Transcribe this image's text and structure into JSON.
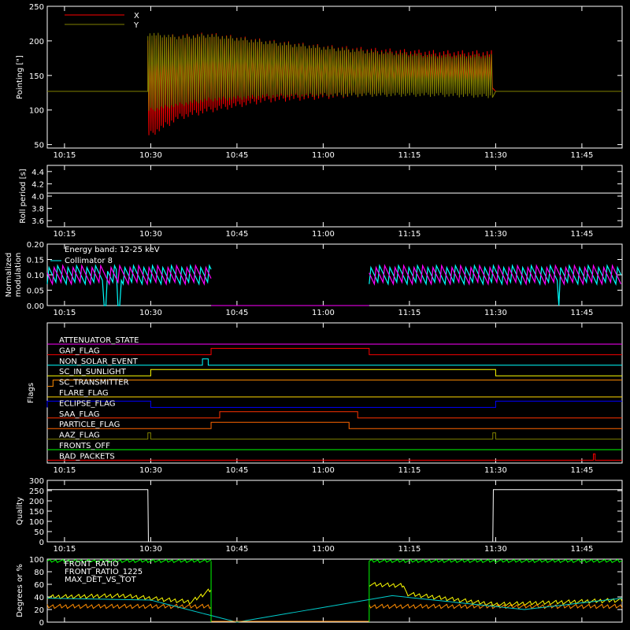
{
  "chart_data": [
    {
      "type": "line",
      "ylabel": "Pointing [\"]",
      "ylim": [
        45,
        250
      ],
      "yticks": [
        50,
        100,
        150,
        200,
        250
      ],
      "xlim": [
        "10:12",
        "11:52"
      ],
      "series": [
        {
          "name": "X",
          "color": "#ff0000",
          "note_units": "arcsec",
          "x": [
            "10:12",
            "10:29",
            "10:30",
            "10:35",
            "10:40",
            "10:50",
            "11:00",
            "11:10",
            "11:20",
            "11:29.5",
            "11:30",
            "11:52"
          ],
          "max": [
            127,
            127,
            205,
            205,
            208,
            198,
            190,
            185,
            182,
            182,
            127,
            127
          ],
          "min": [
            127,
            127,
            65,
            90,
            100,
            115,
            120,
            125,
            135,
            135,
            127,
            127
          ]
        },
        {
          "name": "Y",
          "color": "#808000",
          "x": [
            "10:12",
            "10:29",
            "10:30",
            "10:35",
            "10:40",
            "10:50",
            "11:00",
            "11:10",
            "11:20",
            "11:29.5",
            "11:30",
            "11:52"
          ],
          "max": [
            127,
            127,
            210,
            205,
            208,
            198,
            190,
            183,
            178,
            178,
            127,
            127
          ],
          "min": [
            127,
            127,
            100,
            108,
            115,
            120,
            122,
            122,
            122,
            120,
            127,
            127
          ]
        }
      ]
    },
    {
      "type": "line",
      "ylabel": "Roll period [s]",
      "ylim": [
        3.5,
        4.5
      ],
      "yticks": [
        "3.6",
        "3.8",
        "4.0",
        "4.2",
        "4.4"
      ],
      "series": [
        {
          "color": "#ffffff",
          "x": [
            "10:12",
            "11:52"
          ],
          "y": [
            4.05,
            4.05
          ]
        }
      ]
    },
    {
      "type": "line",
      "ylabel": "Normalized modulation",
      "ylim": [
        0,
        0.2
      ],
      "yticks": [
        "0.00",
        "0.05",
        "0.10",
        "0.15",
        "0.20"
      ],
      "annotation": "Energy band: 12-25 keV",
      "series": [
        {
          "name": "Collimator 8",
          "color": "#00ffff",
          "segments": [
            [
              "10:12",
              "10:40.5"
            ],
            [
              "11:08",
              "11:52"
            ]
          ],
          "level": 0.1,
          "dips": [
            "10:22",
            "10:24.5",
            "11:41"
          ]
        },
        {
          "name": "",
          "color": "#ff00ff",
          "segments": [
            [
              "10:12",
              "10:40.5"
            ],
            [
              "11:08",
              "11:52"
            ]
          ],
          "level": 0.1
        }
      ]
    },
    {
      "type": "step",
      "ylabel": "Flags",
      "flags": [
        {
          "name": "ATTENUATOR_STATE",
          "color": "#ff00ff",
          "on": []
        },
        {
          "name": "GAP_FLAG",
          "color": "#ff0000",
          "on": [
            [
              "10:40.5",
              "11:08"
            ]
          ]
        },
        {
          "name": "NON_SOLAR_EVENT",
          "color": "#00ffff",
          "on": [
            [
              "10:39",
              "10:40"
            ]
          ]
        },
        {
          "name": "SC_IN_SUNLIGHT",
          "color": "#ffff00",
          "on": [
            [
              "10:30",
              "11:30"
            ]
          ]
        },
        {
          "name": "SC_TRANSMITTER",
          "color": "#ff8c00",
          "on": [
            [
              "10:13",
              "11:52"
            ]
          ]
        },
        {
          "name": "FLARE_FLAG",
          "color": "#ffd700",
          "on": []
        },
        {
          "name": "ECLIPSE_FLAG",
          "color": "#0000ff",
          "on": [
            [
              "10:12",
              "10:30"
            ],
            [
              "11:30",
              "11:52"
            ]
          ]
        },
        {
          "name": "SAA_FLAG",
          "color": "#ff3300",
          "on": [
            [
              "10:42",
              "11:06"
            ]
          ]
        },
        {
          "name": "PARTICLE_FLAG",
          "color": "#ff6600",
          "on": [
            [
              "10:40.5",
              "11:04.5"
            ]
          ]
        },
        {
          "name": "AAZ_FLAG",
          "color": "#808000",
          "on": [
            [
              "10:29.5",
              "10:30"
            ],
            [
              "11:29.5",
              "11:30"
            ]
          ]
        },
        {
          "name": "FRONTS_OFF",
          "color": "#00ff00",
          "on": []
        },
        {
          "name": "BAD_PACKETS",
          "color": "#ff0000",
          "on": [
            [
              "11:47",
              "11:47.3"
            ]
          ]
        }
      ]
    },
    {
      "type": "step",
      "ylabel": "Quality",
      "ylim": [
        0,
        300
      ],
      "yticks": [
        0,
        50,
        100,
        150,
        200,
        250,
        300
      ],
      "series": [
        {
          "color": "#ffffff",
          "x": [
            "10:12",
            "10:29.5",
            "10:29.6",
            "11:29.5",
            "11:29.6",
            "11:52"
          ],
          "y": [
            255,
            255,
            0,
            0,
            255,
            255
          ]
        }
      ]
    },
    {
      "type": "line",
      "ylabel": "Degrees or %",
      "ylim": [
        0,
        100
      ],
      "yticks": [
        0,
        20,
        40,
        60,
        80,
        100
      ],
      "series": [
        {
          "name": "FRONT_RATIO",
          "color": "#ffff00",
          "segments": [
            {
              "x": [
                "10:12",
                "10:25",
                "10:37",
                "10:40.5"
              ],
              "y": [
                40,
                42,
                32,
                52
              ]
            },
            {
              "x": [
                "11:08",
                "11:14",
                "11:14.5",
                "11:30",
                "11:52"
              ],
              "y": [
                60,
                58,
                45,
                28,
                35
              ]
            }
          ]
        },
        {
          "name": "FRONT_RATIO_1225",
          "color": "#00ff00",
          "segments": [
            {
              "x": [
                "10:12",
                "10:40.5"
              ],
              "y": [
                97,
                97
              ]
            },
            {
              "x": [
                "11:08",
                "11:52"
              ],
              "y": [
                97,
                97
              ]
            }
          ]
        },
        {
          "name": "MAX_DET_VS_TOT",
          "color": "#ff8c00",
          "segments": [
            {
              "x": [
                "10:12",
                "10:40.5"
              ],
              "y": [
                25,
                25
              ]
            },
            {
              "x": [
                "11:08",
                "11:52"
              ],
              "y": [
                25,
                25
              ]
            }
          ]
        },
        {
          "name": "",
          "color": "#00cccc",
          "x": [
            "10:12",
            "10:30",
            "10:45",
            "11:12",
            "11:35",
            "11:52"
          ],
          "y": [
            38,
            35,
            0,
            42,
            20,
            38
          ]
        }
      ]
    }
  ],
  "time_ticks": [
    "10:15",
    "10:30",
    "10:45",
    "11:00",
    "11:15",
    "11:30",
    "11:45"
  ]
}
